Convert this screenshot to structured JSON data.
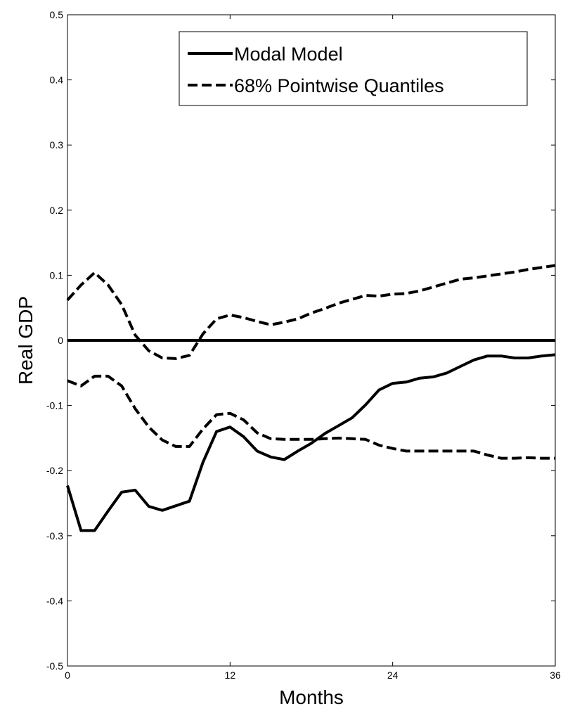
{
  "chart_data": {
    "type": "line",
    "xlabel": "Months",
    "ylabel": "Real GDP",
    "xlim": [
      0,
      36
    ],
    "ylim": [
      -0.5,
      0.5
    ],
    "xticks": [
      0,
      12,
      24,
      36
    ],
    "xtick_labels": [
      "0",
      "12",
      "24",
      "36"
    ],
    "yticks": [
      -0.5,
      -0.4,
      -0.3,
      -0.2,
      -0.1,
      0,
      0.1,
      0.2,
      0.3,
      0.4,
      0.5
    ],
    "ytick_labels": [
      "-0.5",
      "-0.4",
      "-0.3",
      "-0.2",
      "-0.1",
      "0",
      "0.1",
      "0.2",
      "0.3",
      "0.4",
      "0.5"
    ],
    "grid": false,
    "legend_position": "top-right",
    "legend": [
      "Modal Model",
      "68% Pointwise Quantiles"
    ],
    "x": [
      0,
      1,
      2,
      3,
      4,
      5,
      6,
      7,
      8,
      9,
      10,
      11,
      12,
      13,
      14,
      15,
      16,
      17,
      18,
      19,
      20,
      21,
      22,
      23,
      24,
      25,
      26,
      27,
      28,
      29,
      30,
      31,
      32,
      33,
      34,
      35,
      36
    ],
    "series": [
      {
        "name": "Modal Model",
        "style": "solid",
        "values": [
          -0.223,
          -0.292,
          -0.292,
          -0.262,
          -0.233,
          -0.23,
          -0.255,
          -0.261,
          -0.254,
          -0.247,
          -0.187,
          -0.14,
          -0.133,
          -0.148,
          -0.17,
          -0.179,
          -0.183,
          -0.17,
          -0.158,
          -0.143,
          -0.131,
          -0.119,
          -0.099,
          -0.076,
          -0.066,
          -0.064,
          -0.058,
          -0.056,
          -0.05,
          -0.04,
          -0.03,
          -0.024,
          -0.024,
          -0.027,
          -0.027,
          -0.024,
          -0.022
        ]
      },
      {
        "name": "68% Pointwise Quantiles",
        "style": "dashed",
        "values": [
          0.062,
          0.085,
          0.104,
          0.085,
          0.055,
          0.008,
          -0.016,
          -0.027,
          -0.028,
          -0.023,
          0.01,
          0.033,
          0.039,
          0.035,
          0.029,
          0.024,
          0.028,
          0.033,
          0.042,
          0.049,
          0.057,
          0.063,
          0.069,
          0.068,
          0.071,
          0.072,
          0.076,
          0.082,
          0.088,
          0.094,
          0.096,
          0.099,
          0.102,
          0.105,
          0.109,
          0.112,
          0.115
        ]
      },
      {
        "name": "68% Pointwise Quantiles",
        "style": "dashed",
        "values": [
          -0.062,
          -0.07,
          -0.055,
          -0.055,
          -0.07,
          -0.105,
          -0.133,
          -0.153,
          -0.163,
          -0.163,
          -0.136,
          -0.114,
          -0.112,
          -0.122,
          -0.142,
          -0.151,
          -0.152,
          -0.152,
          -0.152,
          -0.151,
          -0.15,
          -0.151,
          -0.152,
          -0.161,
          -0.166,
          -0.17,
          -0.17,
          -0.17,
          -0.17,
          -0.17,
          -0.17,
          -0.176,
          -0.181,
          -0.181,
          -0.18,
          -0.181,
          -0.181
        ]
      },
      {
        "name": "",
        "style": "solid",
        "values": [
          0,
          0,
          0,
          0,
          0,
          0,
          0,
          0,
          0,
          0,
          0,
          0,
          0,
          0,
          0,
          0,
          0,
          0,
          0,
          0,
          0,
          0,
          0,
          0,
          0,
          0,
          0,
          0,
          0,
          0,
          0,
          0,
          0,
          0,
          0,
          0,
          0
        ]
      }
    ]
  }
}
